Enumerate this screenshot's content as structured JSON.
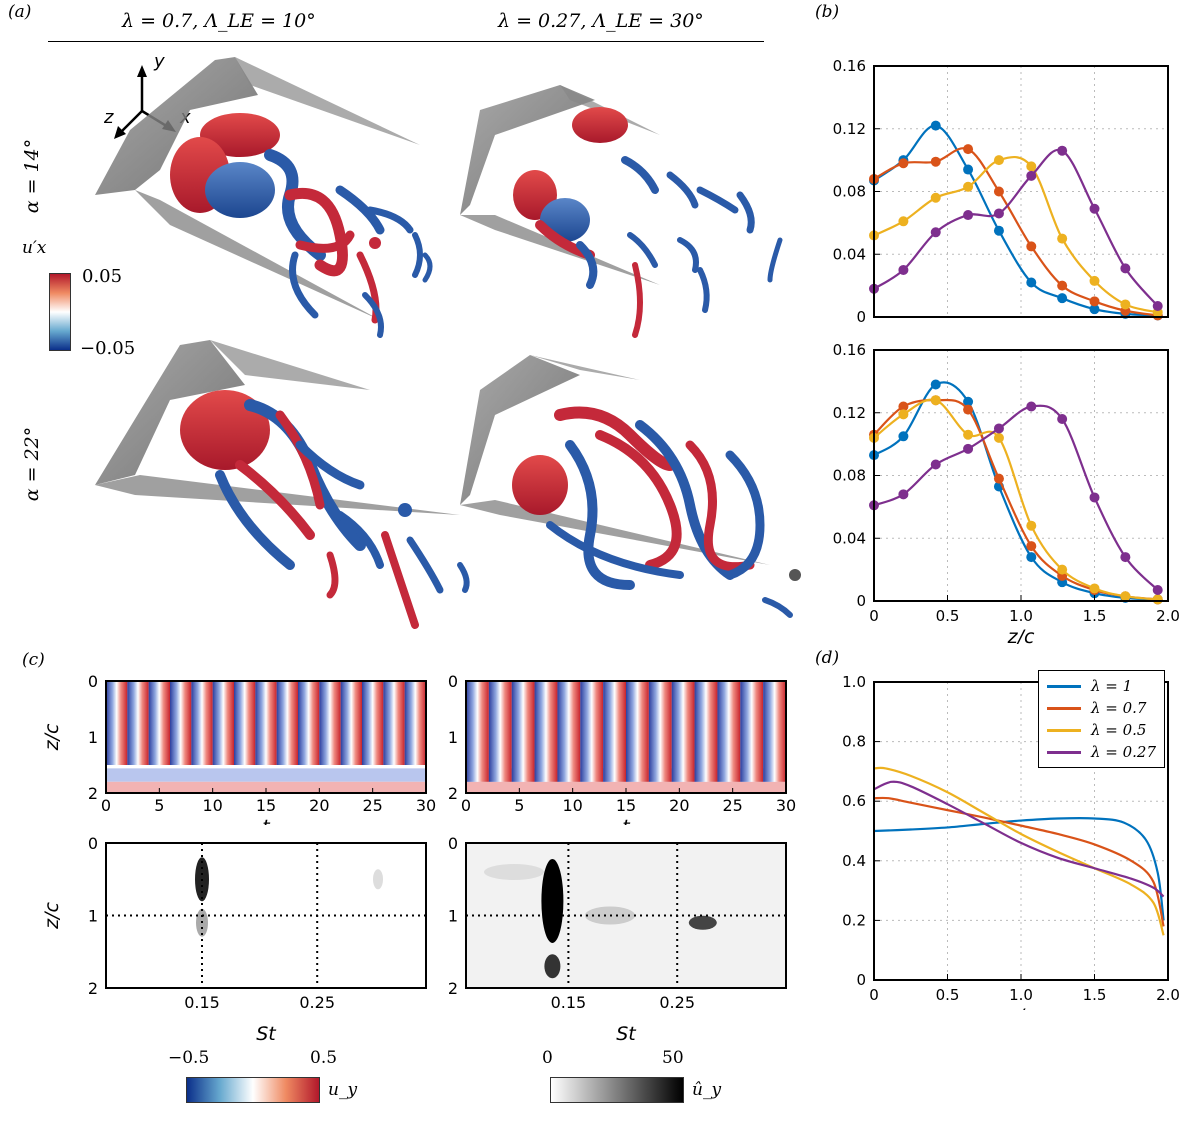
{
  "panels": {
    "a": "(a)",
    "b": "(b)",
    "c": "(c)",
    "d": "(d)"
  },
  "headings": {
    "left": "λ = 0.7, Λ_LE = 10°",
    "right": "λ = 0.27, Λ_LE = 30°"
  },
  "rows": {
    "top": "α = 14°",
    "bottom": "α = 22°"
  },
  "axes3d": {
    "x": "x",
    "y": "y",
    "z": "z"
  },
  "colorbar_a": {
    "label": "u′x",
    "max": "0.05",
    "min": "−0.05"
  },
  "colorbar_uy": {
    "min": "−0.5",
    "max": "0.5",
    "label": "u_y"
  },
  "colorbar_hat": {
    "min": "0",
    "max": "50",
    "label": "û_y"
  },
  "colors": {
    "lambda_1": "#0072BD",
    "lambda_07": "#D95319",
    "lambda_05": "#EDB120",
    "lambda_027": "#7E2F8E",
    "positive": "#d62728",
    "negative": "#1f4e9c"
  },
  "chart_data": [
    {
      "type": "line",
      "panel": "(b) top",
      "xlim": [
        0,
        2.0
      ],
      "ylim": [
        0,
        0.16
      ],
      "yticks": [
        "0",
        "0.04",
        "0.08",
        "0.12",
        "0.16"
      ],
      "series": [
        {
          "name": "λ = 1",
          "x": [
            0,
            0.2,
            0.42,
            0.64,
            0.85,
            1.07,
            1.28,
            1.5,
            1.71,
            1.93
          ],
          "y": [
            0.087,
            0.1,
            0.122,
            0.094,
            0.055,
            0.022,
            0.012,
            0.005,
            0.002,
            0.001
          ]
        },
        {
          "name": "λ = 0.7",
          "x": [
            0,
            0.2,
            0.42,
            0.64,
            0.85,
            1.07,
            1.28,
            1.5,
            1.71,
            1.93
          ],
          "y": [
            0.088,
            0.098,
            0.099,
            0.107,
            0.08,
            0.045,
            0.02,
            0.01,
            0.004,
            0.001
          ]
        },
        {
          "name": "λ = 0.5",
          "x": [
            0,
            0.2,
            0.42,
            0.64,
            0.85,
            1.07,
            1.28,
            1.5,
            1.71,
            1.93
          ],
          "y": [
            0.052,
            0.061,
            0.076,
            0.083,
            0.1,
            0.096,
            0.05,
            0.023,
            0.008,
            0.003
          ]
        },
        {
          "name": "λ = 0.27",
          "x": [
            0,
            0.2,
            0.42,
            0.64,
            0.85,
            1.07,
            1.28,
            1.5,
            1.71,
            1.93
          ],
          "y": [
            0.018,
            0.03,
            0.054,
            0.065,
            0.066,
            0.09,
            0.106,
            0.069,
            0.031,
            0.007
          ]
        }
      ]
    },
    {
      "type": "line",
      "panel": "(b) bottom",
      "xlim": [
        0,
        2.0
      ],
      "ylim": [
        0,
        0.16
      ],
      "xlabel": "z/c",
      "xticks": [
        "0",
        "0.5",
        "1.0",
        "1.5",
        "2.0"
      ],
      "yticks": [
        "0",
        "0.04",
        "0.08",
        "0.12",
        "0.16"
      ],
      "series": [
        {
          "name": "λ = 1",
          "x": [
            0,
            0.2,
            0.42,
            0.64,
            0.85,
            1.07,
            1.28,
            1.5,
            1.71,
            1.93
          ],
          "y": [
            0.093,
            0.105,
            0.138,
            0.127,
            0.073,
            0.028,
            0.012,
            0.005,
            0.002,
            0.001
          ]
        },
        {
          "name": "λ = 0.7",
          "x": [
            0,
            0.2,
            0.42,
            0.64,
            0.85,
            1.07,
            1.28,
            1.5,
            1.71,
            1.93
          ],
          "y": [
            0.106,
            0.124,
            0.128,
            0.122,
            0.078,
            0.035,
            0.016,
            0.007,
            0.003,
            0.001
          ]
        },
        {
          "name": "λ = 0.5",
          "x": [
            0,
            0.2,
            0.42,
            0.64,
            0.85,
            1.07,
            1.28,
            1.5,
            1.71,
            1.93
          ],
          "y": [
            0.104,
            0.119,
            0.128,
            0.106,
            0.104,
            0.048,
            0.02,
            0.008,
            0.003,
            0.001
          ]
        },
        {
          "name": "λ = 0.27",
          "x": [
            0,
            0.2,
            0.42,
            0.64,
            0.85,
            1.07,
            1.28,
            1.5,
            1.71,
            1.93
          ],
          "y": [
            0.061,
            0.068,
            0.087,
            0.097,
            0.11,
            0.124,
            0.116,
            0.066,
            0.028,
            0.007
          ]
        }
      ]
    },
    {
      "type": "line",
      "panel": "(d)",
      "xlim": [
        0,
        2.0
      ],
      "ylim": [
        0,
        1.0
      ],
      "xlabel": "z/c",
      "xticks": [
        "0",
        "0.5",
        "1.0",
        "1.5",
        "2.0"
      ],
      "yticks": [
        "0",
        "0.2",
        "0.4",
        "0.6",
        "0.8",
        "1.0"
      ],
      "legend": [
        "λ = 1",
        "λ = 0.7",
        "λ = 0.5",
        "λ = 0.27"
      ],
      "series": [
        {
          "name": "λ = 1",
          "x": [
            0,
            0.25,
            0.5,
            0.75,
            1.0,
            1.25,
            1.5,
            1.7,
            1.85,
            1.93,
            1.97
          ],
          "y": [
            0.5,
            0.505,
            0.512,
            0.524,
            0.535,
            0.542,
            0.542,
            0.528,
            0.47,
            0.36,
            0.2
          ]
        },
        {
          "name": "λ = 0.7",
          "x": [
            0,
            0.1,
            0.25,
            0.5,
            0.75,
            1.0,
            1.25,
            1.5,
            1.75,
            1.9,
            1.97
          ],
          "y": [
            0.61,
            0.61,
            0.595,
            0.57,
            0.545,
            0.518,
            0.49,
            0.455,
            0.4,
            0.33,
            0.18
          ]
        },
        {
          "name": "λ = 0.5",
          "x": [
            0,
            0.08,
            0.25,
            0.5,
            0.75,
            1.0,
            1.25,
            1.5,
            1.75,
            1.9,
            1.97
          ],
          "y": [
            0.71,
            0.71,
            0.685,
            0.63,
            0.56,
            0.49,
            0.43,
            0.375,
            0.32,
            0.26,
            0.15
          ]
        },
        {
          "name": "λ = 0.27",
          "x": [
            0,
            0.12,
            0.25,
            0.5,
            0.75,
            1.0,
            1.25,
            1.5,
            1.75,
            1.9,
            1.97
          ],
          "y": [
            0.64,
            0.665,
            0.65,
            0.59,
            0.525,
            0.46,
            0.41,
            0.375,
            0.34,
            0.31,
            0.28
          ]
        }
      ]
    },
    {
      "type": "heatmap",
      "panel": "(c) top",
      "xlim": [
        0,
        30
      ],
      "ylim": [
        0,
        2
      ],
      "xlabel": "t",
      "ylabel": "z/c",
      "xticks": [
        "0",
        "5",
        "10",
        "15",
        "20",
        "25",
        "30"
      ],
      "yticks": [
        "0",
        "1",
        "2"
      ],
      "left_oscillations": 15,
      "right_oscillations": 14
    },
    {
      "type": "heatmap",
      "panel": "(c) bottom",
      "xlabel": "St",
      "ylabel": "z/c",
      "xticks": [
        "0.15",
        "0.25"
      ],
      "yticks": [
        "0",
        "1",
        "2"
      ],
      "peak_left_St": 0.15,
      "peak_right_St": 0.14
    }
  ]
}
